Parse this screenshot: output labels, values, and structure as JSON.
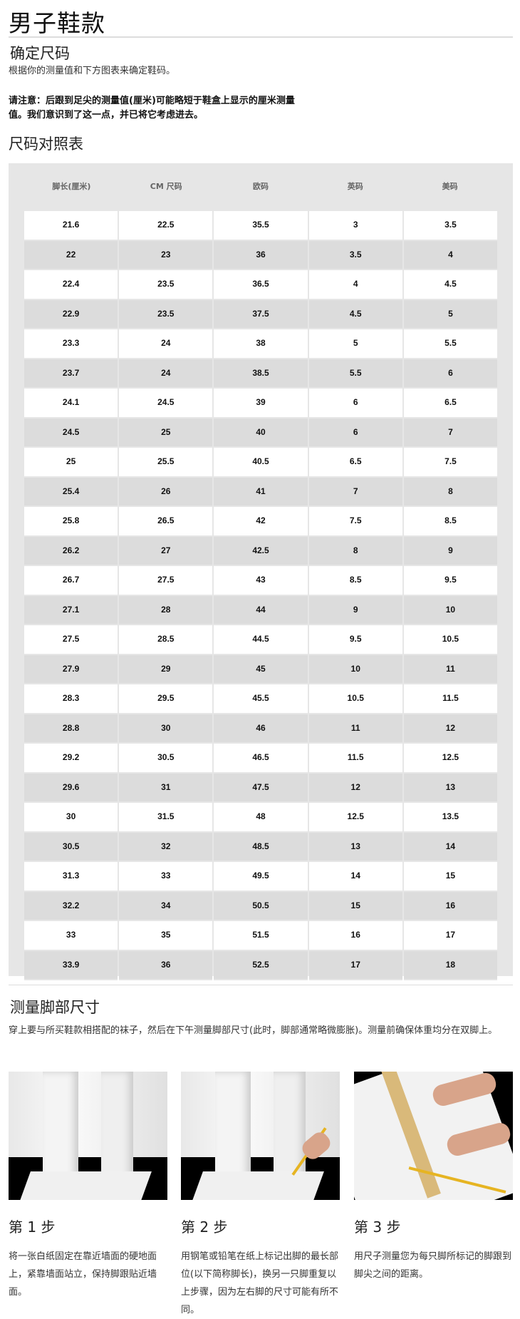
{
  "page_title": "男子鞋款",
  "determine": {
    "heading": "确定尺码",
    "intro": "根据你的测量值和下方图表来确定鞋码。",
    "note_line1": "请注意：后跟到足尖的测量值(厘米)可能略短于鞋盒上显示的厘米测量",
    "note_line2": "值。我们意识到了这一点，并已将它考虑进去。"
  },
  "chart": {
    "heading": "尺码对照表",
    "columns": [
      "脚长(厘米)",
      "CM 尺码",
      "欧码",
      "英码",
      "美码"
    ],
    "rows": [
      [
        "21.6",
        "22.5",
        "35.5",
        "3",
        "3.5"
      ],
      [
        "22",
        "23",
        "36",
        "3.5",
        "4"
      ],
      [
        "22.4",
        "23.5",
        "36.5",
        "4",
        "4.5"
      ],
      [
        "22.9",
        "23.5",
        "37.5",
        "4.5",
        "5"
      ],
      [
        "23.3",
        "24",
        "38",
        "5",
        "5.5"
      ],
      [
        "23.7",
        "24",
        "38.5",
        "5.5",
        "6"
      ],
      [
        "24.1",
        "24.5",
        "39",
        "6",
        "6.5"
      ],
      [
        "24.5",
        "25",
        "40",
        "6",
        "7"
      ],
      [
        "25",
        "25.5",
        "40.5",
        "6.5",
        "7.5"
      ],
      [
        "25.4",
        "26",
        "41",
        "7",
        "8"
      ],
      [
        "25.8",
        "26.5",
        "42",
        "7.5",
        "8.5"
      ],
      [
        "26.2",
        "27",
        "42.5",
        "8",
        "9"
      ],
      [
        "26.7",
        "27.5",
        "43",
        "8.5",
        "9.5"
      ],
      [
        "27.1",
        "28",
        "44",
        "9",
        "10"
      ],
      [
        "27.5",
        "28.5",
        "44.5",
        "9.5",
        "10.5"
      ],
      [
        "27.9",
        "29",
        "45",
        "10",
        "11"
      ],
      [
        "28.3",
        "29.5",
        "45.5",
        "10.5",
        "11.5"
      ],
      [
        "28.8",
        "30",
        "46",
        "11",
        "12"
      ],
      [
        "29.2",
        "30.5",
        "46.5",
        "11.5",
        "12.5"
      ],
      [
        "29.6",
        "31",
        "47.5",
        "12",
        "13"
      ],
      [
        "30",
        "31.5",
        "48",
        "12.5",
        "13.5"
      ],
      [
        "30.5",
        "32",
        "48.5",
        "13",
        "14"
      ],
      [
        "31.3",
        "33",
        "49.5",
        "14",
        "15"
      ],
      [
        "32.2",
        "34",
        "50.5",
        "15",
        "16"
      ],
      [
        "33",
        "35",
        "51.5",
        "16",
        "17"
      ],
      [
        "33.9",
        "36",
        "52.5",
        "17",
        "18"
      ]
    ]
  },
  "measure": {
    "heading": "测量脚部尺寸",
    "intro": "穿上要与所买鞋款相搭配的袜子，然后在下午测量脚部尺寸(此时，脚部通常略微膨胀)。测量前确保体重均分在双脚上。",
    "steps": [
      {
        "title": "第 1 步",
        "text": "将一张白纸固定在靠近墙面的硬地面上，紧靠墙面站立，保持脚跟贴近墙面。"
      },
      {
        "title": "第 2 步",
        "text": "用钢笔或铅笔在纸上标记出脚的最长部位(以下简称脚长)，换另一只脚重复以上步骤，因为左右脚的尺寸可能有所不同。"
      },
      {
        "title": "第 3 步",
        "text": "用尺子测量您为每只脚所标记的脚跟到脚尖之间的距离。"
      }
    ]
  }
}
